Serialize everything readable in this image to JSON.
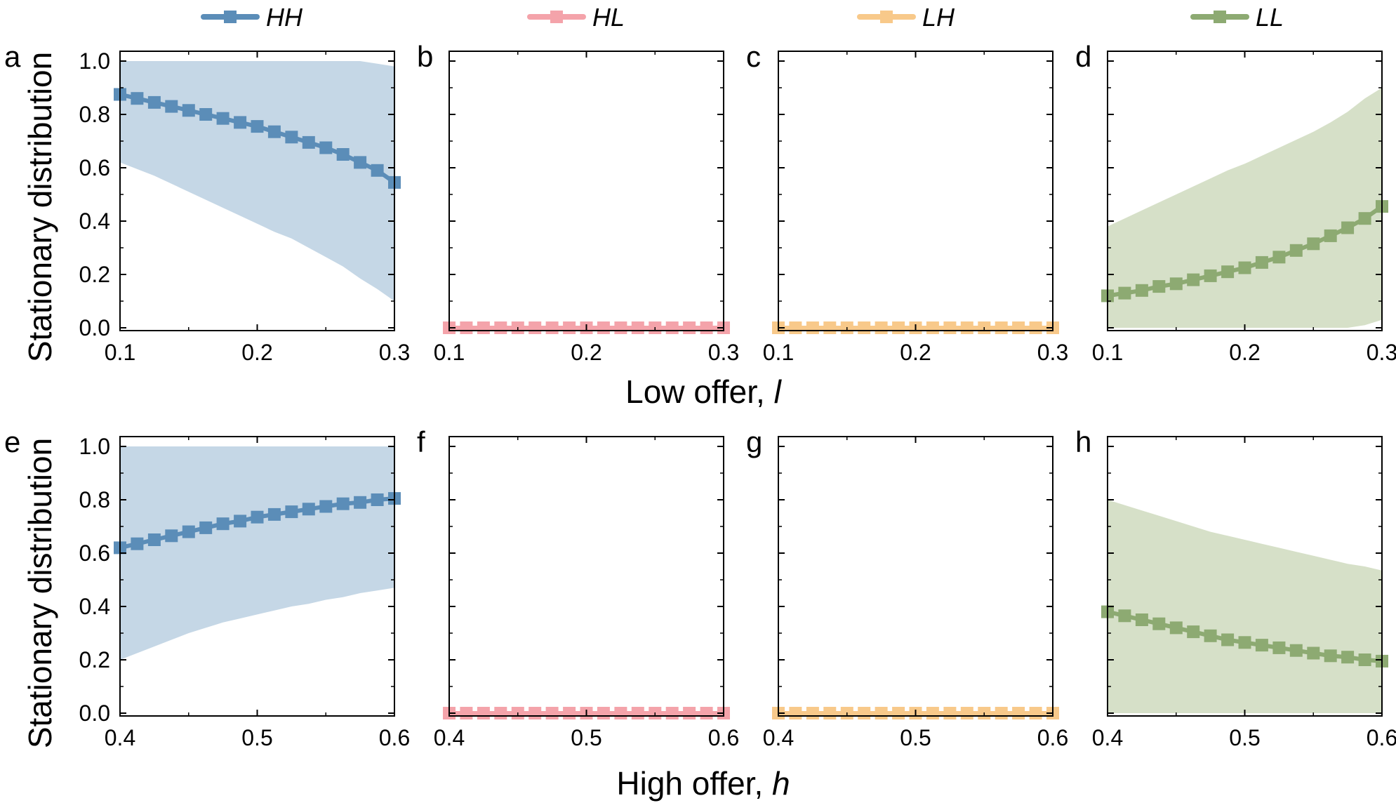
{
  "chart_data": {
    "type": "line",
    "legend": {
      "placement": "top",
      "entries": [
        {
          "name": "HH",
          "color": "#5b8db8"
        },
        {
          "name": "HL",
          "color": "#f4a3aa"
        },
        {
          "name": "LH",
          "color": "#f8c98a"
        },
        {
          "name": "LL",
          "color": "#8daa72"
        }
      ]
    },
    "band_colors": {
      "HH": "#c5d7e6",
      "HL": "#fde0e2",
      "LH": "#fdebd2",
      "LL": "#d6e0c8"
    },
    "ylabel": "Stationary distribution",
    "rows": [
      {
        "xlabel": "Low offer, ",
        "xlabel_var": "l",
        "xlim": [
          0.1,
          0.3
        ],
        "xticks": [
          "0.1",
          "0.2",
          "0.3"
        ],
        "x": [
          0.1,
          0.1125,
          0.125,
          0.1375,
          0.15,
          0.1625,
          0.175,
          0.1875,
          0.2,
          0.2125,
          0.225,
          0.2375,
          0.25,
          0.2625,
          0.275,
          0.2875,
          0.3
        ]
      },
      {
        "xlabel": "High offer, ",
        "xlabel_var": "h",
        "xlim": [
          0.4,
          0.6
        ],
        "xticks": [
          "0.4",
          "0.5",
          "0.6"
        ],
        "x": [
          0.4,
          0.4125,
          0.425,
          0.4375,
          0.45,
          0.4625,
          0.475,
          0.4875,
          0.5,
          0.5125,
          0.525,
          0.5375,
          0.55,
          0.5625,
          0.575,
          0.5875,
          0.6
        ]
      }
    ],
    "ylim": [
      0,
      1
    ],
    "yticks": [
      "0.0",
      "0.2",
      "0.4",
      "0.6",
      "0.8",
      "1.0"
    ],
    "panels": [
      {
        "label": "a",
        "row": 0,
        "col": 0,
        "series": "HH",
        "show_ytick_labels": true,
        "values": [
          0.875,
          0.86,
          0.845,
          0.83,
          0.815,
          0.8,
          0.785,
          0.77,
          0.755,
          0.735,
          0.715,
          0.695,
          0.675,
          0.65,
          0.62,
          0.59,
          0.545
        ],
        "band_upper": [
          1.0,
          1.0,
          1.0,
          1.0,
          1.0,
          1.0,
          1.0,
          1.0,
          1.0,
          1.0,
          1.0,
          1.0,
          1.0,
          1.0,
          1.0,
          0.99,
          0.98
        ],
        "band_lower": [
          0.62,
          0.595,
          0.57,
          0.54,
          0.51,
          0.48,
          0.45,
          0.42,
          0.39,
          0.36,
          0.335,
          0.3,
          0.265,
          0.23,
          0.185,
          0.145,
          0.1
        ]
      },
      {
        "label": "b",
        "row": 0,
        "col": 1,
        "series": "HL",
        "show_ytick_labels": false,
        "values": [
          0,
          0,
          0,
          0,
          0,
          0,
          0,
          0,
          0,
          0,
          0,
          0,
          0,
          0,
          0,
          0,
          0
        ],
        "band_upper": [
          0,
          0,
          0,
          0,
          0,
          0,
          0,
          0,
          0,
          0,
          0,
          0,
          0,
          0,
          0,
          0,
          0
        ],
        "band_lower": [
          0,
          0,
          0,
          0,
          0,
          0,
          0,
          0,
          0,
          0,
          0,
          0,
          0,
          0,
          0,
          0,
          0
        ]
      },
      {
        "label": "c",
        "row": 0,
        "col": 2,
        "series": "LH",
        "show_ytick_labels": false,
        "values": [
          0,
          0,
          0,
          0,
          0,
          0,
          0,
          0,
          0,
          0,
          0,
          0,
          0,
          0,
          0,
          0,
          0
        ],
        "band_upper": [
          0,
          0,
          0,
          0,
          0,
          0,
          0,
          0,
          0,
          0,
          0,
          0,
          0,
          0,
          0,
          0,
          0
        ],
        "band_lower": [
          0,
          0,
          0,
          0,
          0,
          0,
          0,
          0,
          0,
          0,
          0,
          0,
          0,
          0,
          0,
          0,
          0
        ]
      },
      {
        "label": "d",
        "row": 0,
        "col": 3,
        "series": "LL",
        "show_ytick_labels": false,
        "values": [
          0.12,
          0.13,
          0.14,
          0.155,
          0.165,
          0.18,
          0.195,
          0.21,
          0.225,
          0.245,
          0.265,
          0.29,
          0.315,
          0.345,
          0.375,
          0.41,
          0.455
        ],
        "band_upper": [
          0.38,
          0.41,
          0.44,
          0.47,
          0.5,
          0.53,
          0.56,
          0.59,
          0.615,
          0.645,
          0.675,
          0.705,
          0.735,
          0.77,
          0.81,
          0.86,
          0.9
        ],
        "band_lower": [
          0,
          0,
          0,
          0,
          0,
          0,
          0,
          0,
          0,
          0,
          0,
          0,
          0,
          0,
          0,
          0.01,
          0.03
        ]
      },
      {
        "label": "e",
        "row": 1,
        "col": 0,
        "series": "HH",
        "show_ytick_labels": true,
        "values": [
          0.62,
          0.635,
          0.65,
          0.665,
          0.68,
          0.695,
          0.71,
          0.72,
          0.735,
          0.745,
          0.755,
          0.765,
          0.775,
          0.785,
          0.79,
          0.8,
          0.805
        ],
        "band_upper": [
          1.0,
          1.0,
          1.0,
          1.0,
          1.0,
          1.0,
          1.0,
          1.0,
          1.0,
          1.0,
          1.0,
          1.0,
          1.0,
          1.0,
          1.0,
          1.0,
          1.0
        ],
        "band_lower": [
          0.2,
          0.225,
          0.25,
          0.275,
          0.3,
          0.32,
          0.34,
          0.355,
          0.37,
          0.385,
          0.4,
          0.41,
          0.425,
          0.435,
          0.45,
          0.46,
          0.47
        ]
      },
      {
        "label": "f",
        "row": 1,
        "col": 1,
        "series": "HL",
        "show_ytick_labels": false,
        "values": [
          0,
          0,
          0,
          0,
          0,
          0,
          0,
          0,
          0,
          0,
          0,
          0,
          0,
          0,
          0,
          0,
          0
        ],
        "band_upper": [
          0,
          0,
          0,
          0,
          0,
          0,
          0,
          0,
          0,
          0,
          0,
          0,
          0,
          0,
          0,
          0,
          0
        ],
        "band_lower": [
          0,
          0,
          0,
          0,
          0,
          0,
          0,
          0,
          0,
          0,
          0,
          0,
          0,
          0,
          0,
          0,
          0
        ]
      },
      {
        "label": "g",
        "row": 1,
        "col": 2,
        "series": "LH",
        "show_ytick_labels": false,
        "values": [
          0,
          0,
          0,
          0,
          0,
          0,
          0,
          0,
          0,
          0,
          0,
          0,
          0,
          0,
          0,
          0,
          0
        ],
        "band_upper": [
          0,
          0,
          0,
          0,
          0,
          0,
          0,
          0,
          0,
          0,
          0,
          0,
          0,
          0,
          0,
          0,
          0
        ],
        "band_lower": [
          0,
          0,
          0,
          0,
          0,
          0,
          0,
          0,
          0,
          0,
          0,
          0,
          0,
          0,
          0,
          0,
          0
        ]
      },
      {
        "label": "h",
        "row": 1,
        "col": 3,
        "series": "LL",
        "show_ytick_labels": false,
        "values": [
          0.38,
          0.365,
          0.35,
          0.335,
          0.32,
          0.305,
          0.29,
          0.275,
          0.265,
          0.255,
          0.245,
          0.235,
          0.225,
          0.215,
          0.21,
          0.2,
          0.195
        ],
        "band_upper": [
          0.8,
          0.78,
          0.76,
          0.74,
          0.72,
          0.7,
          0.68,
          0.665,
          0.65,
          0.635,
          0.62,
          0.605,
          0.59,
          0.575,
          0.56,
          0.55,
          0.535
        ],
        "band_lower": [
          0,
          0,
          0,
          0,
          0,
          0,
          0,
          0,
          0,
          0,
          0,
          0,
          0,
          0,
          0,
          0,
          0
        ]
      }
    ]
  }
}
